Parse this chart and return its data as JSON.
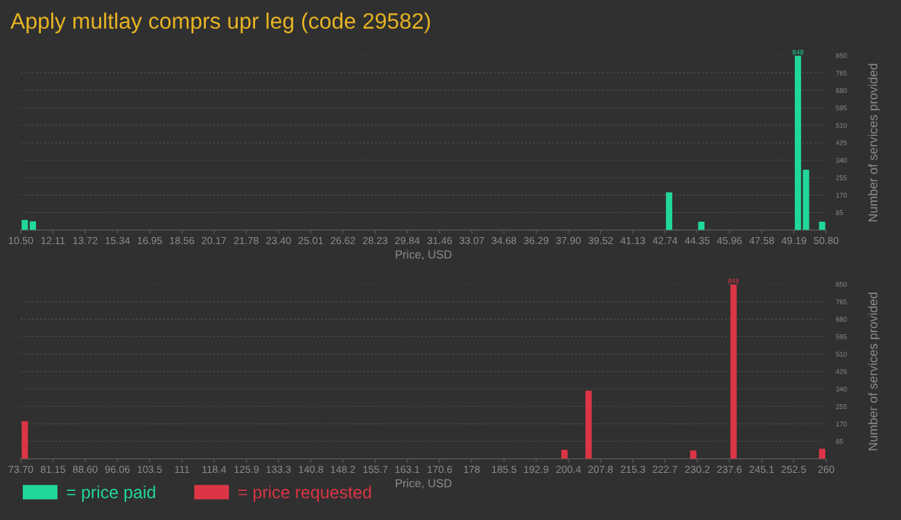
{
  "chart_data": [
    {
      "type": "histogram",
      "title": "Apply multlay comprs upr leg (code 29582)",
      "xlabel": "Price, USD",
      "ylabel": "Number of services provided",
      "bins": [
        10.5,
        10.903,
        11.306,
        11.709,
        12.112,
        12.515,
        12.918,
        13.321,
        13.724,
        14.127,
        14.53,
        14.933,
        15.336,
        15.739,
        16.142,
        16.545,
        16.948,
        17.351,
        17.754,
        18.157,
        18.56,
        18.963,
        19.366,
        19.769,
        20.172,
        20.575,
        20.978,
        21.381,
        21.784,
        22.187,
        22.59,
        22.993,
        23.396,
        23.799,
        24.202,
        24.605,
        25.008,
        25.411,
        25.814,
        26.217,
        26.62,
        27.023,
        27.426,
        27.829,
        28.232,
        28.635,
        29.038,
        29.441,
        29.844,
        30.247,
        30.65,
        31.053,
        31.456,
        31.859,
        32.262,
        32.665,
        33.068,
        33.471,
        33.874,
        34.277,
        34.68,
        35.083,
        35.486,
        35.889,
        36.292,
        36.695,
        37.098,
        37.501,
        37.904,
        38.307,
        38.71,
        39.113,
        39.516,
        39.919,
        40.322,
        40.725,
        41.128,
        41.531,
        41.934,
        42.337,
        42.74,
        43.143,
        43.546,
        43.949,
        44.352,
        44.755,
        45.158,
        45.561,
        45.964,
        46.367,
        46.77,
        47.173,
        47.576,
        47.979,
        48.382,
        48.785,
        49.188,
        49.591,
        49.994,
        50.397,
        50.8
      ],
      "series": [
        {
          "name": "= price paid",
          "color": "#21d89b",
          "values": [
            49,
            42,
            0,
            0,
            0,
            0,
            0,
            0,
            0,
            0,
            0,
            0,
            0,
            0,
            0,
            0,
            0,
            0,
            0,
            0,
            0,
            0,
            0,
            0,
            0,
            0,
            0,
            0,
            0,
            0,
            0,
            0,
            0,
            0,
            0,
            0,
            0,
            0,
            0,
            0,
            0,
            0,
            0,
            0,
            0,
            0,
            0,
            0,
            0,
            0,
            0,
            0,
            0,
            0,
            0,
            0,
            0,
            0,
            0,
            0,
            0,
            0,
            0,
            0,
            0,
            0,
            0,
            0,
            0,
            0,
            0,
            0,
            0,
            0,
            0,
            0,
            0,
            0,
            0,
            0,
            183,
            0,
            0,
            0,
            40,
            0,
            0,
            0,
            0,
            0,
            0,
            0,
            0,
            0,
            0,
            0,
            848,
            294,
            0,
            40
          ],
          "value_labels": [
            null,
            null,
            null,
            null,
            null,
            null,
            null,
            null,
            null,
            null,
            null,
            null,
            null,
            null,
            null,
            null,
            null,
            null,
            null,
            null,
            null,
            null,
            null,
            null,
            null,
            null,
            null,
            null,
            null,
            null,
            null,
            null,
            null,
            null,
            null,
            null,
            null,
            null,
            null,
            null,
            null,
            null,
            null,
            null,
            null,
            null,
            null,
            null,
            null,
            null,
            null,
            null,
            null,
            null,
            null,
            null,
            null,
            null,
            null,
            null,
            null,
            null,
            null,
            null,
            null,
            null,
            null,
            null,
            null,
            null,
            null,
            null,
            null,
            null,
            null,
            null,
            null,
            null,
            null,
            null,
            null,
            null,
            null,
            null,
            null,
            null,
            null,
            null,
            null,
            null,
            null,
            null,
            null,
            null,
            null,
            null,
            "848",
            null,
            null,
            null
          ]
        }
      ],
      "xlim": [
        10.5,
        50.8
      ],
      "xticks": [
        {
          "value": 10.5,
          "label": "10.50"
        },
        12.11,
        13.72,
        15.34,
        16.95,
        18.56,
        20.17,
        21.78,
        {
          "value": 23.4,
          "label": "23.40"
        },
        25.01,
        26.62,
        28.23,
        29.84,
        31.46,
        33.07,
        34.68,
        36.29,
        {
          "value": 37.9,
          "label": "37.90"
        },
        39.52,
        41.13,
        42.74,
        44.35,
        45.96,
        47.58,
        49.19,
        {
          "value": 50.8,
          "label": "50.80"
        }
      ],
      "ylim": [
        0,
        850
      ],
      "yticks": [
        85,
        170,
        255,
        340,
        425,
        510,
        595,
        680,
        765,
        850
      ],
      "grid": "y",
      "legend": "bottom left"
    },
    {
      "type": "histogram",
      "xlabel": "Price, USD",
      "ylabel": "Number of services provided",
      "bins": [
        73.7,
        75.563,
        77.426,
        79.289,
        81.152,
        83.015,
        84.878,
        86.741,
        88.604,
        90.467,
        92.33,
        94.193,
        96.056,
        97.919,
        99.782,
        101.645,
        103.508,
        105.371,
        107.234,
        109.097,
        110.96,
        112.823,
        114.686,
        116.549,
        118.412,
        120.275,
        122.138,
        124.001,
        125.864,
        127.727,
        129.59,
        131.453,
        133.316,
        135.179,
        137.042,
        138.905,
        140.768,
        142.631,
        144.494,
        146.357,
        148.22,
        150.083,
        151.946,
        153.809,
        155.672,
        157.535,
        159.398,
        161.261,
        163.124,
        164.987,
        166.85,
        168.713,
        170.576,
        172.439,
        174.302,
        176.165,
        178.028,
        179.891,
        181.754,
        183.617,
        185.48,
        187.343,
        189.206,
        191.069,
        192.932,
        194.795,
        196.658,
        198.521,
        200.384,
        202.247,
        204.11,
        205.973,
        207.836,
        209.699,
        211.562,
        213.425,
        215.288,
        217.151,
        219.014,
        220.877,
        222.74,
        224.603,
        226.466,
        228.329,
        230.192,
        232.055,
        233.918,
        235.781,
        237.644,
        239.507,
        241.37,
        243.233,
        245.096,
        246.959,
        248.822,
        250.685,
        252.548,
        254.411,
        256.274,
        258.137,
        260
      ],
      "series": [
        {
          "name": "= price requested",
          "color": "#dc3545",
          "values": [
            183,
            0,
            0,
            0,
            0,
            0,
            0,
            0,
            0,
            0,
            0,
            0,
            0,
            0,
            0,
            0,
            0,
            0,
            0,
            0,
            0,
            0,
            0,
            0,
            0,
            0,
            0,
            0,
            0,
            0,
            0,
            0,
            0,
            0,
            0,
            0,
            0,
            0,
            0,
            0,
            0,
            0,
            0,
            0,
            0,
            0,
            0,
            0,
            0,
            0,
            0,
            0,
            0,
            0,
            0,
            0,
            0,
            0,
            0,
            0,
            0,
            0,
            0,
            0,
            0,
            0,
            0,
            44,
            0,
            0,
            332,
            0,
            0,
            0,
            0,
            0,
            0,
            0,
            0,
            0,
            0,
            0,
            0,
            40,
            0,
            0,
            0,
            0,
            848,
            0,
            0,
            0,
            0,
            0,
            0,
            0,
            0,
            0,
            0,
            49
          ],
          "value_labels": [
            null,
            null,
            null,
            null,
            null,
            null,
            null,
            null,
            null,
            null,
            null,
            null,
            null,
            null,
            null,
            null,
            null,
            null,
            null,
            null,
            null,
            null,
            null,
            null,
            null,
            null,
            null,
            null,
            null,
            null,
            null,
            null,
            null,
            null,
            null,
            null,
            null,
            null,
            null,
            null,
            null,
            null,
            null,
            null,
            null,
            null,
            null,
            null,
            null,
            null,
            null,
            null,
            null,
            null,
            null,
            null,
            null,
            null,
            null,
            null,
            null,
            null,
            null,
            null,
            null,
            null,
            null,
            null,
            null,
            null,
            null,
            null,
            null,
            null,
            null,
            null,
            null,
            null,
            null,
            null,
            null,
            null,
            null,
            null,
            null,
            null,
            null,
            null,
            "848",
            null,
            null,
            null,
            null,
            null,
            null,
            null,
            null,
            null,
            null,
            null
          ]
        }
      ],
      "xlim": [
        73.7,
        260
      ],
      "xticks": [
        {
          "value": 73.7,
          "label": "73.70"
        },
        81.15,
        {
          "value": 88.6,
          "label": "88.60"
        },
        96.06,
        103.5,
        111,
        118.4,
        125.9,
        133.3,
        140.8,
        148.2,
        155.7,
        163.1,
        170.6,
        178,
        185.5,
        192.9,
        200.4,
        207.8,
        215.3,
        222.7,
        230.2,
        237.6,
        245.1,
        252.5,
        260
      ],
      "ylim": [
        0,
        850
      ],
      "yticks": [
        85,
        170,
        255,
        340,
        425,
        510,
        595,
        680,
        765,
        850
      ],
      "grid": "y",
      "legend": "bottom left"
    }
  ]
}
